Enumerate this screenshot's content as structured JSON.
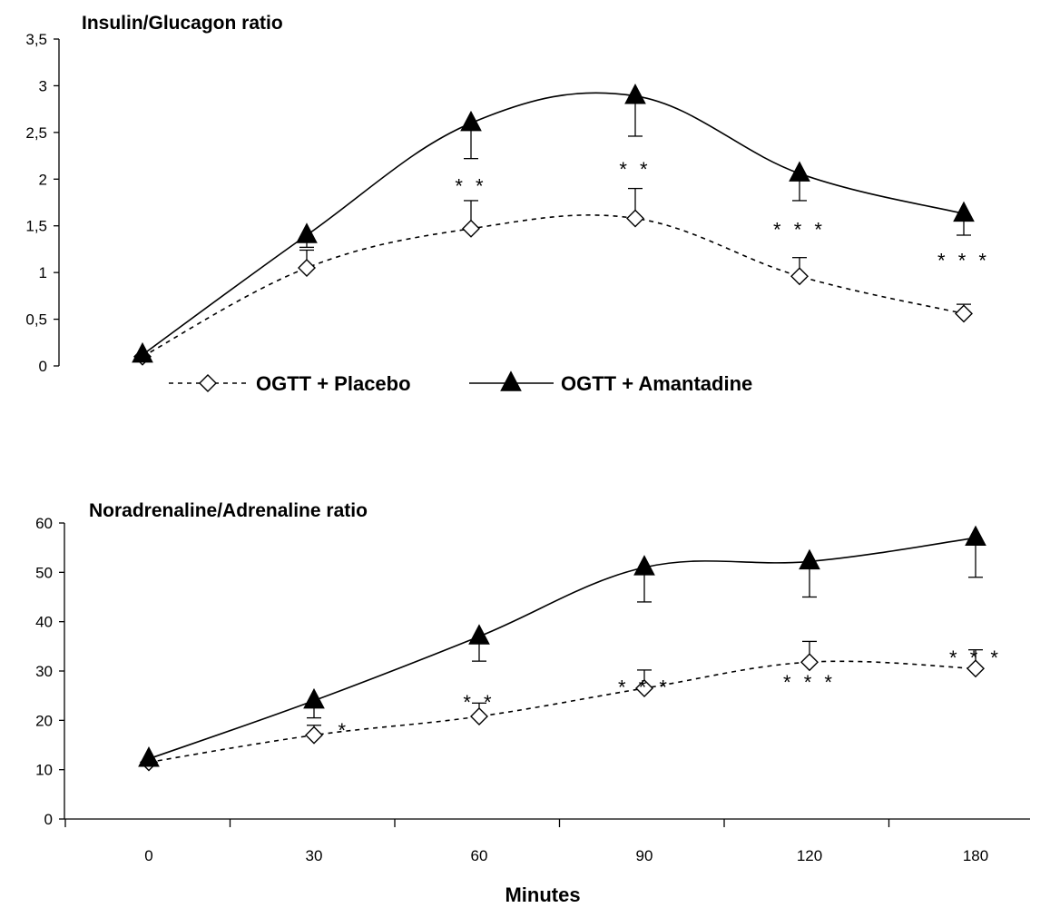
{
  "chart_data": [
    {
      "type": "line",
      "title": "Insulin/Glucagon ratio",
      "xlabel": "",
      "ylabel": "",
      "categories": [
        "0",
        "30",
        "60",
        "90",
        "120",
        "180"
      ],
      "y_ticks": [
        "0",
        "0,5",
        "1",
        "1,5",
        "2",
        "2,5",
        "3",
        "3,5"
      ],
      "ylim": [
        0,
        3.5
      ],
      "grid": false,
      "legend_position": "bottom",
      "series": [
        {
          "name": "OGTT + Placebo",
          "marker": "open-diamond",
          "line_style": "dashed",
          "values": [
            0.1,
            1.05,
            1.47,
            1.58,
            0.96,
            0.56
          ],
          "error_upper": [
            0.1,
            1.24,
            1.77,
            1.9,
            1.16,
            0.66
          ]
        },
        {
          "name": "OGTT + Amantadine",
          "marker": "filled-triangle",
          "line_style": "solid",
          "values": [
            0.12,
            1.4,
            2.6,
            2.89,
            2.06,
            1.63
          ],
          "error_lower": [
            0.12,
            1.27,
            2.22,
            2.46,
            1.77,
            1.4
          ]
        }
      ],
      "annotations": [
        {
          "category_index": 2,
          "text": "* *",
          "y": 1.97
        },
        {
          "category_index": 3,
          "text": "* *",
          "y": 2.15
        },
        {
          "category_index": 4,
          "text": "* * *",
          "y": 1.5
        },
        {
          "category_index": 5,
          "text": "* * *",
          "y": 1.17
        }
      ]
    },
    {
      "type": "line",
      "title": "Noradrenaline/Adrenaline ratio",
      "xlabel": "Minutes",
      "ylabel": "",
      "categories": [
        "0",
        "30",
        "60",
        "90",
        "120",
        "180"
      ],
      "y_ticks": [
        "0",
        "10",
        "20",
        "30",
        "40",
        "50",
        "60"
      ],
      "ylim": [
        0,
        60
      ],
      "grid": false,
      "series": [
        {
          "name": "OGTT + Placebo",
          "marker": "open-diamond",
          "line_style": "dashed",
          "values": [
            11.5,
            17,
            20.8,
            26.5,
            31.8,
            30.5
          ],
          "error_upper": [
            11.5,
            19,
            23.5,
            30.2,
            36,
            34.3
          ]
        },
        {
          "name": "OGTT + Amantadine",
          "marker": "filled-triangle",
          "line_style": "solid",
          "values": [
            12.2,
            24,
            37,
            51,
            52.2,
            57
          ],
          "error_lower": [
            12.2,
            20.5,
            32,
            44,
            45,
            49
          ]
        }
      ],
      "annotations": [
        {
          "category_index": 1,
          "x_offset": 0.18,
          "text": "*",
          "y": 18.8
        },
        {
          "category_index": 2,
          "text": "* *",
          "y": 24.5
        },
        {
          "category_index": 3,
          "text": "* * *",
          "y": 27.5
        },
        {
          "category_index": 4,
          "text": "* * *",
          "y": 28.5
        },
        {
          "category_index": 5,
          "text": "* * *",
          "y": 33.5
        }
      ]
    }
  ]
}
